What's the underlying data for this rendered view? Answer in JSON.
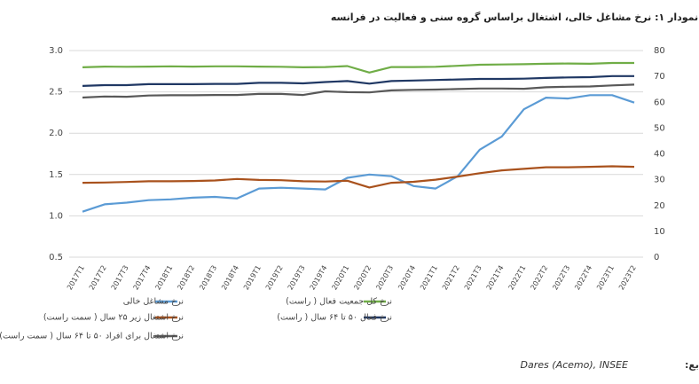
{
  "chart_data": {
    "type": "line",
    "title": "نمودار ۱: نرخ مشاغل خالی، اشتغال براساس گروه سنی و فعالیت در فرانسه",
    "source_label": "منابع:",
    "source": "Dares (Acemo), INSEE",
    "categories": [
      "2017T1",
      "2017T2",
      "2017T3",
      "2017T4",
      "2018T1",
      "2018T2",
      "2018T3",
      "2018T4",
      "2019T1",
      "2019T2",
      "2019T3",
      "2019T4",
      "2020T1",
      "2020T2",
      "2020T3",
      "2020T4",
      "2021T1",
      "2021T2",
      "2021T3",
      "2021T4",
      "2022T1",
      "2022T2",
      "2022T3",
      "2022T4",
      "2023T1",
      "2023T2"
    ],
    "ylim": [
      0.5,
      3.0
    ],
    "yticks": [
      {
        "value": 0.5,
        "label": "0.5"
      },
      {
        "value": 1.0,
        "label": "1.0"
      },
      1.5,
      {
        "value": 2.0,
        "label": "2.0"
      },
      2.5,
      {
        "value": 3.0,
        "label": "3.0"
      }
    ],
    "y2lim": [
      0,
      80
    ],
    "y2ticks": [
      0,
      10,
      20,
      30,
      40,
      50,
      60,
      70,
      80
    ],
    "grid": true,
    "series": [
      {
        "name": "نرخ مشاغل خالی",
        "color": "#5b9bd5",
        "values": [
          1.05,
          1.14,
          1.16,
          1.19,
          1.2,
          1.22,
          1.23,
          1.21,
          1.33,
          1.34,
          1.33,
          1.32,
          1.46,
          1.5,
          1.48,
          1.36,
          1.33,
          1.48,
          1.8,
          1.96,
          2.29,
          2.43,
          2.42,
          2.46,
          2.46,
          2.37
        ]
      },
      {
        "name": "نرخ کل جمعیت فعال ( راست)",
        "color": "#70ad47",
        "axis": "y2",
        "values": [
          73.5,
          73.8,
          73.7,
          73.8,
          73.9,
          73.8,
          73.9,
          73.9,
          73.8,
          73.7,
          73.5,
          73.6,
          74.0,
          71.5,
          73.6,
          73.6,
          73.7,
          74.1,
          74.5,
          74.6,
          74.7,
          74.9,
          75.0,
          74.9,
          75.2,
          75.2
        ]
      },
      {
        "name": "نرخ اشتغال زیر ۲۵ سال ( سمت راست)",
        "color": "#a9521d",
        "axis": "y2",
        "values": [
          28.8,
          28.9,
          29.1,
          29.4,
          29.4,
          29.5,
          29.7,
          30.3,
          29.9,
          29.8,
          29.4,
          29.3,
          29.6,
          27.0,
          28.8,
          29.2,
          30.0,
          31.2,
          32.5,
          33.6,
          34.2,
          34.8,
          34.8,
          35.0,
          35.2,
          35.0
        ]
      },
      {
        "name": "نرخ فعال ۵۰ تا ۶۴ سال ( راست)",
        "color": "#203864",
        "axis": "y2",
        "values": [
          66.3,
          66.6,
          66.6,
          67.0,
          67.0,
          67.0,
          67.1,
          67.1,
          67.5,
          67.5,
          67.3,
          67.8,
          68.2,
          67.2,
          68.2,
          68.4,
          68.6,
          68.8,
          69.0,
          69.0,
          69.1,
          69.4,
          69.6,
          69.7,
          70.1,
          70.1
        ]
      },
      {
        "name": "نرخ اشتغال برای افراد ۵۰ تا ۶۴ سال ( سمت راست)",
        "color": "#595959",
        "axis": "y2",
        "values": [
          61.8,
          62.2,
          62.1,
          62.6,
          62.7,
          62.7,
          62.8,
          62.8,
          63.2,
          63.2,
          62.8,
          64.2,
          63.9,
          63.8,
          64.6,
          64.8,
          64.9,
          65.1,
          65.3,
          65.3,
          65.2,
          65.8,
          66.0,
          66.1,
          66.5,
          66.8
        ]
      }
    ]
  }
}
